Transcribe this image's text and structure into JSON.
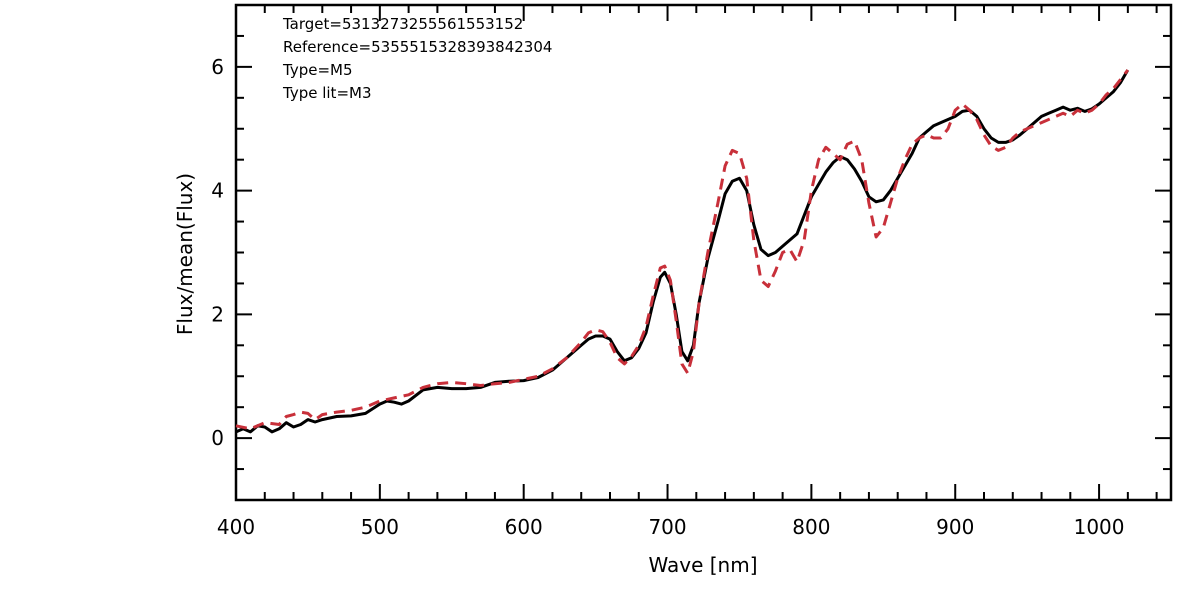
{
  "chart_data": {
    "type": "line",
    "title": "",
    "xlabel": "Wave [nm]",
    "ylabel": "Flux/mean(Flux)",
    "xlim": [
      400,
      1050
    ],
    "ylim": [
      -1,
      7
    ],
    "x_ticks": [
      400,
      500,
      600,
      700,
      800,
      900,
      1000
    ],
    "y_ticks": [
      0,
      2,
      4,
      6
    ],
    "grid": false,
    "annotations": [
      "Target=5313273255561553152",
      "Reference=5355515328393842304",
      "Type=M5",
      "Type lit=M3"
    ],
    "colors": {
      "target": "#000000",
      "reference": "#c8303a"
    },
    "series": [
      {
        "style": "solid",
        "points": [
          [
            400,
            0.1
          ],
          [
            405,
            0.15
          ],
          [
            410,
            0.1
          ],
          [
            415,
            0.2
          ],
          [
            420,
            0.18
          ],
          [
            425,
            0.1
          ],
          [
            430,
            0.15
          ],
          [
            435,
            0.25
          ],
          [
            440,
            0.18
          ],
          [
            445,
            0.22
          ],
          [
            450,
            0.3
          ],
          [
            455,
            0.26
          ],
          [
            460,
            0.3
          ],
          [
            470,
            0.35
          ],
          [
            480,
            0.36
          ],
          [
            490,
            0.4
          ],
          [
            500,
            0.55
          ],
          [
            505,
            0.6
          ],
          [
            510,
            0.58
          ],
          [
            515,
            0.55
          ],
          [
            520,
            0.6
          ],
          [
            530,
            0.78
          ],
          [
            540,
            0.82
          ],
          [
            550,
            0.8
          ],
          [
            560,
            0.8
          ],
          [
            570,
            0.82
          ],
          [
            580,
            0.9
          ],
          [
            590,
            0.92
          ],
          [
            600,
            0.93
          ],
          [
            610,
            0.98
          ],
          [
            620,
            1.1
          ],
          [
            630,
            1.3
          ],
          [
            640,
            1.5
          ],
          [
            645,
            1.6
          ],
          [
            650,
            1.65
          ],
          [
            655,
            1.65
          ],
          [
            660,
            1.6
          ],
          [
            665,
            1.4
          ],
          [
            670,
            1.25
          ],
          [
            675,
            1.3
          ],
          [
            680,
            1.45
          ],
          [
            685,
            1.7
          ],
          [
            690,
            2.2
          ],
          [
            695,
            2.6
          ],
          [
            698,
            2.68
          ],
          [
            702,
            2.5
          ],
          [
            706,
            2.0
          ],
          [
            710,
            1.4
          ],
          [
            714,
            1.25
          ],
          [
            718,
            1.5
          ],
          [
            722,
            2.2
          ],
          [
            728,
            2.9
          ],
          [
            735,
            3.5
          ],
          [
            740,
            3.95
          ],
          [
            745,
            4.15
          ],
          [
            750,
            4.2
          ],
          [
            755,
            4.0
          ],
          [
            760,
            3.45
          ],
          [
            765,
            3.05
          ],
          [
            770,
            2.95
          ],
          [
            775,
            3.0
          ],
          [
            780,
            3.1
          ],
          [
            790,
            3.3
          ],
          [
            800,
            3.9
          ],
          [
            805,
            4.1
          ],
          [
            810,
            4.3
          ],
          [
            815,
            4.45
          ],
          [
            820,
            4.55
          ],
          [
            825,
            4.5
          ],
          [
            830,
            4.35
          ],
          [
            835,
            4.15
          ],
          [
            840,
            3.9
          ],
          [
            845,
            3.82
          ],
          [
            850,
            3.85
          ],
          [
            855,
            4.0
          ],
          [
            860,
            4.2
          ],
          [
            865,
            4.4
          ],
          [
            870,
            4.6
          ],
          [
            875,
            4.85
          ],
          [
            880,
            4.95
          ],
          [
            885,
            5.05
          ],
          [
            890,
            5.1
          ],
          [
            895,
            5.15
          ],
          [
            900,
            5.2
          ],
          [
            905,
            5.28
          ],
          [
            910,
            5.3
          ],
          [
            915,
            5.2
          ],
          [
            920,
            5.0
          ],
          [
            925,
            4.85
          ],
          [
            930,
            4.78
          ],
          [
            935,
            4.78
          ],
          [
            940,
            4.82
          ],
          [
            945,
            4.9
          ],
          [
            950,
            5.0
          ],
          [
            955,
            5.1
          ],
          [
            960,
            5.2
          ],
          [
            965,
            5.25
          ],
          [
            970,
            5.3
          ],
          [
            975,
            5.35
          ],
          [
            980,
            5.3
          ],
          [
            985,
            5.33
          ],
          [
            990,
            5.28
          ],
          [
            995,
            5.32
          ],
          [
            1000,
            5.4
          ],
          [
            1005,
            5.5
          ],
          [
            1010,
            5.6
          ],
          [
            1015,
            5.75
          ],
          [
            1020,
            5.95
          ]
        ]
      },
      {
        "style": "dashed",
        "points": [
          [
            400,
            0.2
          ],
          [
            410,
            0.15
          ],
          [
            420,
            0.25
          ],
          [
            430,
            0.22
          ],
          [
            435,
            0.35
          ],
          [
            440,
            0.38
          ],
          [
            445,
            0.42
          ],
          [
            450,
            0.4
          ],
          [
            455,
            0.3
          ],
          [
            460,
            0.38
          ],
          [
            470,
            0.42
          ],
          [
            480,
            0.45
          ],
          [
            490,
            0.5
          ],
          [
            500,
            0.6
          ],
          [
            510,
            0.65
          ],
          [
            520,
            0.7
          ],
          [
            530,
            0.82
          ],
          [
            540,
            0.88
          ],
          [
            550,
            0.9
          ],
          [
            560,
            0.88
          ],
          [
            570,
            0.85
          ],
          [
            580,
            0.88
          ],
          [
            590,
            0.9
          ],
          [
            600,
            0.95
          ],
          [
            610,
            1.0
          ],
          [
            620,
            1.12
          ],
          [
            630,
            1.3
          ],
          [
            640,
            1.55
          ],
          [
            645,
            1.7
          ],
          [
            650,
            1.75
          ],
          [
            655,
            1.72
          ],
          [
            660,
            1.55
          ],
          [
            665,
            1.3
          ],
          [
            670,
            1.2
          ],
          [
            675,
            1.32
          ],
          [
            680,
            1.5
          ],
          [
            685,
            1.8
          ],
          [
            690,
            2.3
          ],
          [
            695,
            2.75
          ],
          [
            698,
            2.78
          ],
          [
            702,
            2.55
          ],
          [
            706,
            1.9
          ],
          [
            710,
            1.2
          ],
          [
            714,
            1.05
          ],
          [
            718,
            1.4
          ],
          [
            722,
            2.2
          ],
          [
            728,
            3.0
          ],
          [
            735,
            3.8
          ],
          [
            740,
            4.4
          ],
          [
            745,
            4.65
          ],
          [
            750,
            4.6
          ],
          [
            755,
            4.2
          ],
          [
            760,
            3.2
          ],
          [
            765,
            2.55
          ],
          [
            770,
            2.45
          ],
          [
            775,
            2.7
          ],
          [
            780,
            3.0
          ],
          [
            785,
            3.05
          ],
          [
            790,
            2.85
          ],
          [
            795,
            3.2
          ],
          [
            800,
            4.0
          ],
          [
            805,
            4.5
          ],
          [
            810,
            4.7
          ],
          [
            815,
            4.6
          ],
          [
            820,
            4.5
          ],
          [
            825,
            4.75
          ],
          [
            830,
            4.8
          ],
          [
            835,
            4.5
          ],
          [
            840,
            3.8
          ],
          [
            845,
            3.25
          ],
          [
            850,
            3.4
          ],
          [
            855,
            3.8
          ],
          [
            860,
            4.2
          ],
          [
            865,
            4.5
          ],
          [
            870,
            4.75
          ],
          [
            875,
            4.85
          ],
          [
            880,
            4.9
          ],
          [
            885,
            4.85
          ],
          [
            890,
            4.85
          ],
          [
            895,
            5.0
          ],
          [
            900,
            5.3
          ],
          [
            905,
            5.4
          ],
          [
            910,
            5.3
          ],
          [
            915,
            5.15
          ],
          [
            920,
            4.9
          ],
          [
            925,
            4.72
          ],
          [
            930,
            4.65
          ],
          [
            935,
            4.7
          ],
          [
            940,
            4.85
          ],
          [
            945,
            4.95
          ],
          [
            950,
            5.0
          ],
          [
            955,
            5.05
          ],
          [
            960,
            5.1
          ],
          [
            965,
            5.15
          ],
          [
            970,
            5.2
          ],
          [
            975,
            5.25
          ],
          [
            980,
            5.2
          ],
          [
            985,
            5.3
          ],
          [
            990,
            5.25
          ],
          [
            995,
            5.3
          ],
          [
            1000,
            5.4
          ],
          [
            1005,
            5.55
          ],
          [
            1010,
            5.65
          ],
          [
            1015,
            5.8
          ],
          [
            1020,
            5.95
          ]
        ]
      }
    ]
  }
}
